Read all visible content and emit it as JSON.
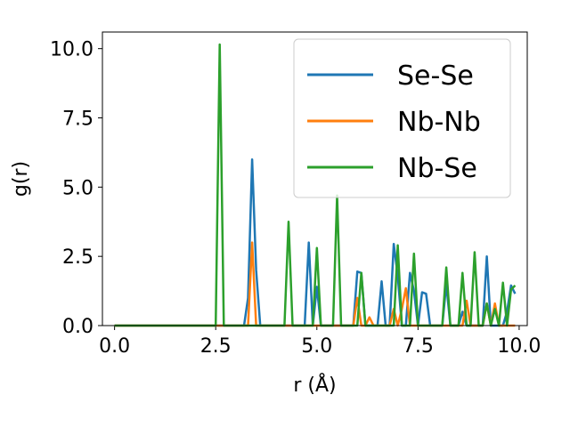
{
  "chart_data": {
    "type": "line",
    "xlabel": "r (Å)",
    "ylabel": "g(r)",
    "xlim": [
      -0.3,
      10.2
    ],
    "ylim": [
      0,
      10.6
    ],
    "xticks": [
      0.0,
      2.5,
      5.0,
      7.5,
      10.0
    ],
    "xtick_labels": [
      "0.0",
      "2.5",
      "5.0",
      "7.5",
      "10.0"
    ],
    "yticks": [
      0.0,
      2.5,
      5.0,
      7.5,
      10.0
    ],
    "ytick_labels": [
      "0.0",
      "2.5",
      "5.0",
      "7.5",
      "10.0"
    ],
    "grid": false,
    "legend_position": "top-right",
    "series": [
      {
        "name": "Se-Se",
        "color": "#1f77b4",
        "x": [
          0,
          3.2,
          3.3,
          3.4,
          3.5,
          3.6,
          4.6,
          4.7,
          4.8,
          4.9,
          5.0,
          5.1,
          5.9,
          6.0,
          6.1,
          6.2,
          6.5,
          6.6,
          6.7,
          6.8,
          6.9,
          7.0,
          7.1,
          7.2,
          7.3,
          7.4,
          7.5,
          7.6,
          7.7,
          7.8,
          7.9,
          8.1,
          8.2,
          8.3,
          8.4,
          8.5,
          8.6,
          8.7,
          8.8,
          8.9,
          9.0,
          9.1,
          9.2,
          9.3,
          9.4,
          9.5,
          9.6,
          9.7,
          9.8,
          9.9
        ],
        "y": [
          0,
          0,
          1.0,
          6.0,
          2.0,
          0,
          0,
          0,
          3.0,
          0,
          1.4,
          0,
          0,
          1.95,
          1.9,
          0,
          0,
          1.6,
          0,
          0,
          2.95,
          1.8,
          0,
          0,
          1.9,
          1.25,
          0,
          1.2,
          1.15,
          0,
          0,
          0,
          1.5,
          0,
          0,
          0,
          0.5,
          0,
          0,
          0,
          0,
          0,
          2.5,
          0,
          0,
          0,
          0,
          0.5,
          1.45,
          1.15
        ]
      },
      {
        "name": "Nb-Nb",
        "color": "#ff7f0e",
        "x": [
          0,
          3.3,
          3.4,
          3.5,
          5.9,
          6.0,
          6.1,
          6.2,
          6.3,
          6.4,
          6.8,
          6.9,
          7.0,
          7.1,
          7.2,
          7.3,
          8.6,
          8.7,
          8.8,
          9.1,
          9.2,
          9.3,
          9.4,
          9.5,
          9.9
        ],
        "y": [
          0,
          0,
          3.0,
          0,
          0,
          1.0,
          0,
          0,
          0.3,
          0,
          0,
          0.6,
          0,
          0.6,
          1.35,
          0,
          0,
          0.9,
          0,
          0,
          0.8,
          0,
          0.8,
          0,
          0
        ]
      },
      {
        "name": "Nb-Se",
        "color": "#2ca02c",
        "x": [
          0,
          2.5,
          2.6,
          2.7,
          4.2,
          4.3,
          4.4,
          4.9,
          5.0,
          5.1,
          5.4,
          5.5,
          5.6,
          6.0,
          6.1,
          6.2,
          6.8,
          6.9,
          7.0,
          7.1,
          7.3,
          7.4,
          7.5,
          8.1,
          8.2,
          8.3,
          8.5,
          8.6,
          8.7,
          8.8,
          8.9,
          9.0,
          9.1,
          9.2,
          9.3,
          9.4,
          9.5,
          9.6,
          9.7,
          9.8,
          9.9
        ],
        "y": [
          0,
          0,
          10.15,
          0,
          0,
          3.75,
          0,
          0,
          2.8,
          0,
          0,
          4.7,
          0,
          0,
          1.9,
          0,
          0,
          0,
          2.9,
          0,
          0,
          2.6,
          0,
          0,
          2.1,
          0,
          0,
          1.9,
          0,
          0,
          2.65,
          0,
          0,
          0.8,
          0,
          0.6,
          0,
          1.55,
          0,
          1.3,
          1.45
        ]
      }
    ]
  }
}
